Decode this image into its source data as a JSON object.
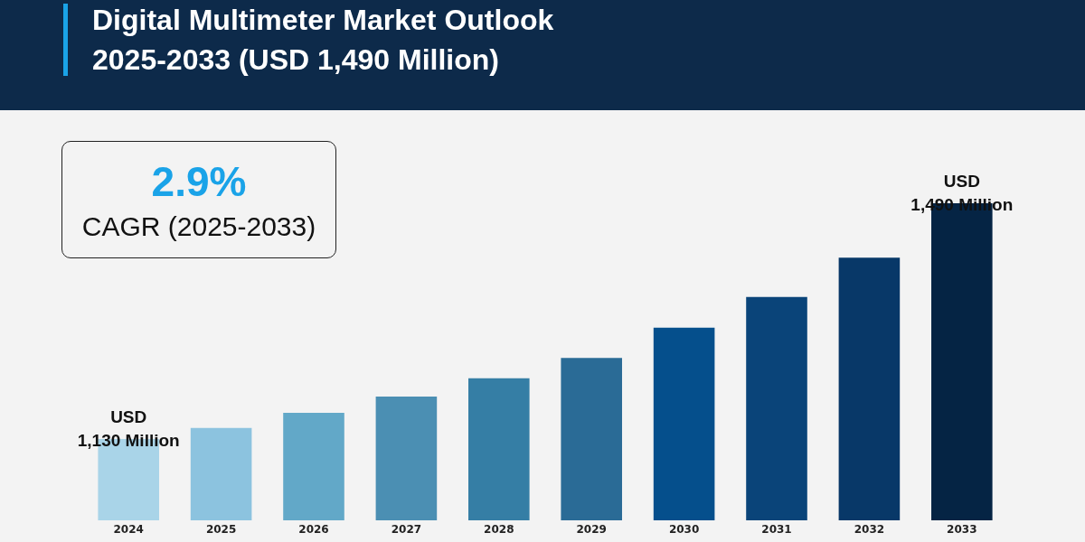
{
  "chart_data": {
    "type": "bar",
    "title": "Digital Multimeter Market Outlook\n2025-2033 (USD 1,490 Million)",
    "annotations": [
      "2.9%",
      "CAGR (2025-2033)"
    ],
    "categories": [
      "2024",
      "2025",
      "2026",
      "2027",
      "2028",
      "2029",
      "2030",
      "2031",
      "2032",
      "2033"
    ],
    "values": [
      1130,
      1147,
      1170,
      1195,
      1223,
      1254,
      1300,
      1347,
      1407,
      1490
    ],
    "value_labels": [
      "USD\n1,130 Million",
      null,
      null,
      null,
      null,
      null,
      null,
      null,
      null,
      "USD\n1,490 Million"
    ],
    "colors": [
      "#a9d4e8",
      "#8cc3df",
      "#62a8c8",
      "#4b8fb3",
      "#357ea5",
      "#2a6b96",
      "#054f8c",
      "#0a4479",
      "#083868",
      "#052444"
    ],
    "ylim": [
      1006,
      1490
    ],
    "tick_labels": "x"
  }
}
